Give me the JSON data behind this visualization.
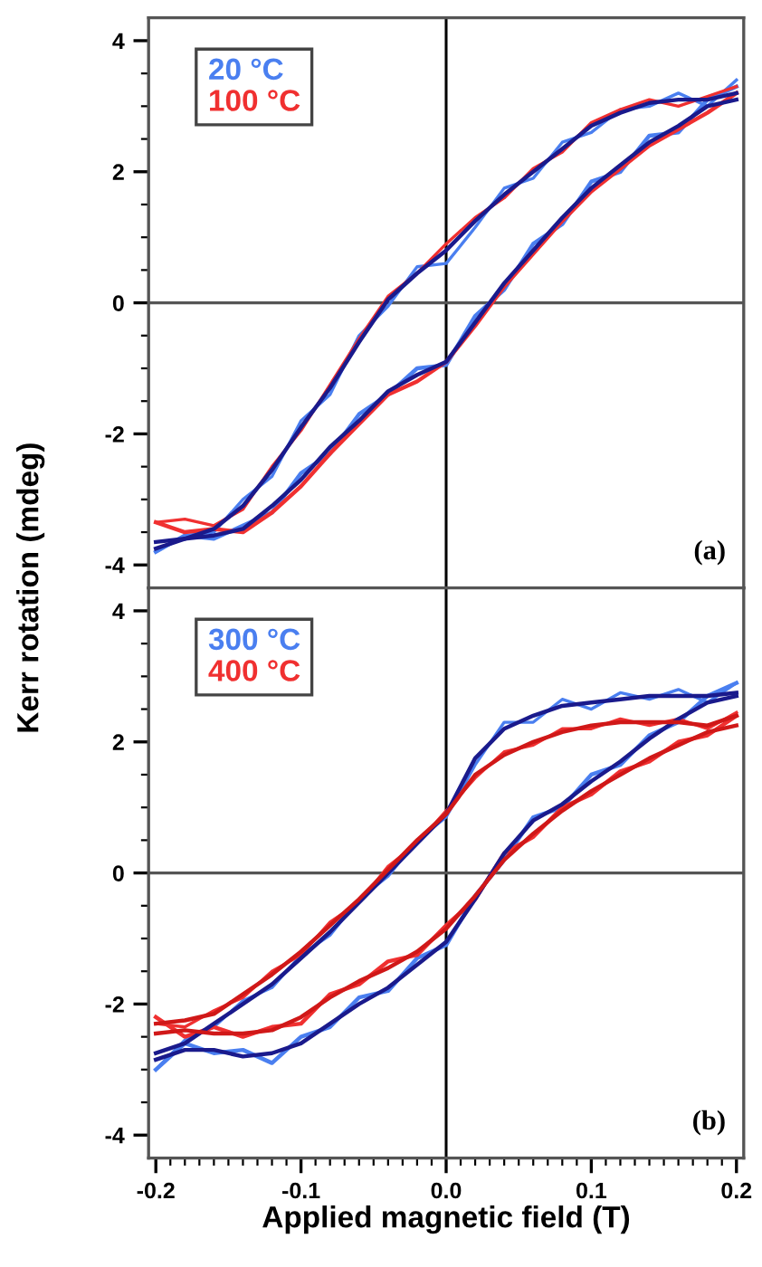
{
  "chart_data": [
    {
      "type": "line",
      "ylabel": "Kerr rotation (mdeg)",
      "xlim": [
        -0.205,
        0.205
      ],
      "xticks": [
        -0.2,
        -0.1,
        0,
        0.1,
        0.2
      ],
      "ylim": [
        -4.35,
        4.35
      ],
      "yticks": [
        -4,
        -2,
        0,
        2,
        4
      ],
      "tick_labels": "y",
      "grid": false,
      "ref_lines": [
        {
          "axis": "x",
          "value": 0,
          "color": "#000000"
        },
        {
          "axis": "y",
          "value": 0,
          "color": "#555555"
        }
      ],
      "annotations": [
        "(a)"
      ],
      "series": [
        {
          "name": "20 °C",
          "color": "#4a7ff0",
          "x": [
            0.2,
            0.18,
            0.16,
            0.14,
            0.12,
            0.1,
            0.08,
            0.06,
            0.04,
            0.02,
            0,
            -0.02,
            -0.04,
            -0.06,
            -0.08,
            -0.1,
            -0.12,
            -0.14,
            -0.16,
            -0.18,
            -0.2
          ],
          "values": [
            3.4,
            3.0,
            3.2,
            3.0,
            2.95,
            2.6,
            2.45,
            1.9,
            1.75,
            1.15,
            0.6,
            0.55,
            -0.05,
            -0.5,
            -1.4,
            -1.8,
            -2.65,
            -3.0,
            -3.5,
            -3.55,
            -3.8
          ]
        },
        {
          "color": "#4a7ff0",
          "x": [
            -0.2,
            -0.18,
            -0.16,
            -0.14,
            -0.12,
            -0.1,
            -0.08,
            -0.06,
            -0.04,
            -0.02,
            0,
            0.02,
            0.04,
            0.06,
            0.08,
            0.1,
            0.12,
            0.14,
            0.16,
            0.18,
            0.2
          ],
          "values": [
            -3.8,
            -3.55,
            -3.6,
            -3.4,
            -3.2,
            -2.6,
            -2.3,
            -1.7,
            -1.4,
            -1.0,
            -0.95,
            -0.2,
            0.2,
            0.9,
            1.2,
            1.85,
            2.0,
            2.55,
            2.6,
            3.1,
            3.3
          ]
        },
        {
          "name": "100 °C",
          "color": "#f03030",
          "x": [
            0.2,
            0.18,
            0.16,
            0.14,
            0.12,
            0.1,
            0.08,
            0.06,
            0.04,
            0.02,
            0,
            -0.02,
            -0.04,
            -0.06,
            -0.08,
            -0.1,
            -0.12,
            -0.14,
            -0.16,
            -0.18,
            -0.2
          ],
          "values": [
            3.3,
            3.15,
            3.0,
            3.1,
            2.95,
            2.75,
            2.3,
            2.05,
            1.6,
            1.3,
            0.9,
            0.45,
            0.1,
            -0.55,
            -1.25,
            -1.95,
            -2.5,
            -3.15,
            -3.4,
            -3.3,
            -3.35
          ]
        },
        {
          "color": "#f03030",
          "x": [
            -0.2,
            -0.18,
            -0.16,
            -0.14,
            -0.12,
            -0.1,
            -0.08,
            -0.06,
            -0.04,
            -0.02,
            0,
            0.02,
            0.04,
            0.06,
            0.08,
            0.1,
            0.12,
            0.14,
            0.16,
            0.18,
            0.2
          ],
          "values": [
            -3.35,
            -3.5,
            -3.45,
            -3.5,
            -3.2,
            -2.8,
            -2.3,
            -1.85,
            -1.4,
            -1.2,
            -0.9,
            -0.35,
            0.25,
            0.75,
            1.25,
            1.7,
            2.05,
            2.4,
            2.65,
            2.9,
            3.2
          ]
        },
        {
          "color": "#1a1a8c",
          "x": [
            0.2,
            0.18,
            0.16,
            0.14,
            0.12,
            0.1,
            0.08,
            0.06,
            0.04,
            0.02,
            0,
            -0.02,
            -0.04,
            -0.06,
            -0.08,
            -0.1,
            -0.12,
            -0.14,
            -0.16,
            -0.18,
            -0.2
          ],
          "values": [
            3.2,
            3.1,
            3.1,
            3.05,
            2.9,
            2.7,
            2.35,
            2.0,
            1.65,
            1.25,
            0.8,
            0.45,
            0.05,
            -0.6,
            -1.3,
            -1.9,
            -2.55,
            -3.1,
            -3.45,
            -3.6,
            -3.65
          ]
        },
        {
          "color": "#1a1a8c",
          "x": [
            -0.2,
            -0.18,
            -0.16,
            -0.14,
            -0.12,
            -0.1,
            -0.08,
            -0.06,
            -0.04,
            -0.02,
            0,
            0.02,
            0.04,
            0.06,
            0.08,
            0.1,
            0.12,
            0.14,
            0.16,
            0.18,
            0.2
          ],
          "values": [
            -3.75,
            -3.6,
            -3.55,
            -3.45,
            -3.1,
            -2.7,
            -2.2,
            -1.8,
            -1.35,
            -1.1,
            -0.9,
            -0.3,
            0.3,
            0.8,
            1.3,
            1.75,
            2.1,
            2.45,
            2.7,
            3.0,
            3.1
          ]
        }
      ]
    },
    {
      "type": "line",
      "xlabel": "Applied magnetic field (T)",
      "xlim": [
        -0.205,
        0.205
      ],
      "xticks": [
        -0.2,
        -0.1,
        {
          "value": 0,
          "label": "0.0"
        },
        0.1,
        0.2
      ],
      "ylim": [
        -4.35,
        4.35
      ],
      "yticks": [
        -4,
        -2,
        0,
        2,
        4
      ],
      "grid": false,
      "ref_lines": [
        {
          "axis": "x",
          "value": 0,
          "color": "#000000"
        },
        {
          "axis": "y",
          "value": 0,
          "color": "#555555"
        }
      ],
      "annotations": [
        "(b)"
      ],
      "series": [
        {
          "name": "300 °C",
          "color": "#4a7ff0",
          "x": [
            0.2,
            0.18,
            0.16,
            0.14,
            0.12,
            0.1,
            0.08,
            0.06,
            0.04,
            0.02,
            0,
            -0.02,
            -0.04,
            -0.06,
            -0.08,
            -0.1,
            -0.12,
            -0.14,
            -0.16,
            -0.18,
            -0.2
          ],
          "values": [
            2.9,
            2.6,
            2.8,
            2.65,
            2.75,
            2.5,
            2.65,
            2.3,
            2.3,
            1.65,
            0.85,
            0.5,
            -0.05,
            -0.4,
            -0.95,
            -1.25,
            -1.75,
            -1.95,
            -2.35,
            -2.55,
            -3.0
          ]
        },
        {
          "color": "#4a7ff0",
          "x": [
            -0.2,
            -0.18,
            -0.16,
            -0.14,
            -0.12,
            -0.1,
            -0.08,
            -0.06,
            -0.04,
            -0.02,
            0,
            0.02,
            0.04,
            0.06,
            0.08,
            0.1,
            0.12,
            0.14,
            0.16,
            0.18,
            0.2
          ],
          "values": [
            -3.0,
            -2.6,
            -2.75,
            -2.7,
            -2.9,
            -2.5,
            -2.35,
            -1.9,
            -1.8,
            -1.3,
            -1.1,
            -0.35,
            0.2,
            0.85,
            1.0,
            1.5,
            1.65,
            2.1,
            2.3,
            2.7,
            2.9
          ]
        },
        {
          "name": "400 °C",
          "color": "#f03030",
          "x": [
            0.2,
            0.18,
            0.16,
            0.14,
            0.12,
            0.1,
            0.08,
            0.06,
            0.04,
            0.02,
            0,
            -0.02,
            -0.04,
            -0.06,
            -0.08,
            -0.1,
            -0.12,
            -0.14,
            -0.16,
            -0.18,
            -0.2
          ],
          "values": [
            2.45,
            2.2,
            2.35,
            2.25,
            2.35,
            2.2,
            2.2,
            1.95,
            1.85,
            1.45,
            0.95,
            0.45,
            0.1,
            -0.45,
            -0.75,
            -1.25,
            -1.5,
            -1.9,
            -2.1,
            -2.35,
            -2.3
          ]
        },
        {
          "color": "#f03030",
          "x": [
            -0.2,
            -0.18,
            -0.16,
            -0.14,
            -0.12,
            -0.1,
            -0.08,
            -0.06,
            -0.04,
            -0.02,
            0,
            0.02,
            0.04,
            0.06,
            0.08,
            0.1,
            0.12,
            0.14,
            0.16,
            0.18,
            0.2
          ],
          "values": [
            -2.2,
            -2.5,
            -2.35,
            -2.5,
            -2.35,
            -2.3,
            -1.85,
            -1.7,
            -1.35,
            -1.25,
            -0.8,
            -0.4,
            0.3,
            0.55,
            1.0,
            1.2,
            1.55,
            1.7,
            2.0,
            2.1,
            2.4
          ]
        },
        {
          "color": "#1a1a8c",
          "x": [
            0.2,
            0.18,
            0.16,
            0.14,
            0.12,
            0.1,
            0.08,
            0.06,
            0.04,
            0.02,
            0,
            -0.02,
            -0.04,
            -0.06,
            -0.08,
            -0.1,
            -0.12,
            -0.14,
            -0.16,
            -0.18,
            -0.2
          ],
          "values": [
            2.75,
            2.7,
            2.7,
            2.7,
            2.65,
            2.6,
            2.55,
            2.4,
            2.2,
            1.75,
            0.9,
            0.45,
            0.0,
            -0.45,
            -0.9,
            -1.3,
            -1.7,
            -2.0,
            -2.3,
            -2.6,
            -2.75
          ]
        },
        {
          "color": "#1a1a8c",
          "x": [
            -0.2,
            -0.18,
            -0.16,
            -0.14,
            -0.12,
            -0.1,
            -0.08,
            -0.06,
            -0.04,
            -0.02,
            0,
            0.02,
            0.04,
            0.06,
            0.08,
            0.1,
            0.12,
            0.14,
            0.16,
            0.18,
            0.2
          ],
          "values": [
            -2.85,
            -2.7,
            -2.7,
            -2.8,
            -2.75,
            -2.6,
            -2.3,
            -2.0,
            -1.75,
            -1.4,
            -1.05,
            -0.4,
            0.3,
            0.8,
            1.05,
            1.4,
            1.7,
            2.05,
            2.35,
            2.6,
            2.7
          ]
        },
        {
          "color": "#d01818",
          "x": [
            0.2,
            0.18,
            0.16,
            0.14,
            0.12,
            0.1,
            0.08,
            0.06,
            0.04,
            0.02,
            0,
            -0.02,
            -0.04,
            -0.06,
            -0.08,
            -0.1,
            -0.12,
            -0.14,
            -0.16,
            -0.18,
            -0.2
          ],
          "values": [
            2.4,
            2.25,
            2.3,
            2.3,
            2.3,
            2.25,
            2.15,
            2.0,
            1.8,
            1.5,
            0.9,
            0.5,
            0.05,
            -0.4,
            -0.8,
            -1.2,
            -1.55,
            -1.85,
            -2.15,
            -2.25,
            -2.3
          ]
        },
        {
          "color": "#d01818",
          "x": [
            -0.2,
            -0.18,
            -0.16,
            -0.14,
            -0.12,
            -0.1,
            -0.08,
            -0.06,
            -0.04,
            -0.02,
            0,
            0.02,
            0.04,
            0.06,
            0.08,
            0.1,
            0.12,
            0.14,
            0.16,
            0.18,
            0.2
          ],
          "values": [
            -2.45,
            -2.4,
            -2.45,
            -2.45,
            -2.4,
            -2.2,
            -1.9,
            -1.65,
            -1.45,
            -1.2,
            -0.85,
            -0.35,
            0.2,
            0.6,
            0.95,
            1.25,
            1.5,
            1.75,
            1.95,
            2.15,
            2.25
          ]
        }
      ]
    }
  ]
}
